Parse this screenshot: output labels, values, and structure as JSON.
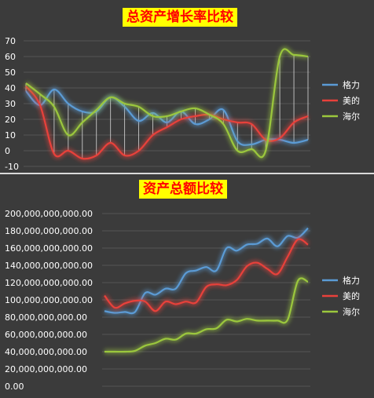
{
  "chart_data": [
    {
      "type": "line",
      "title": "总资产增长率比较",
      "ylim": [
        -10,
        70
      ],
      "yticks": [
        "70",
        "60",
        "50",
        "40",
        "30",
        "20",
        "10",
        "0",
        "-10"
      ],
      "grid": true,
      "legend_position": "right",
      "high_low_lines": true,
      "series": [
        {
          "name": "格力",
          "color": "#5b9bd5",
          "values": [
            38,
            29,
            39,
            30,
            25,
            25,
            34,
            28,
            19,
            24,
            18,
            25,
            17,
            20,
            26,
            6,
            4,
            7,
            7,
            5,
            7
          ]
        },
        {
          "name": "美的",
          "color": "#e8413b",
          "values": [
            41,
            29,
            -2,
            0,
            -5,
            -3,
            5,
            -3,
            0,
            10,
            15,
            20,
            22,
            23,
            20,
            18,
            17,
            7,
            8,
            18,
            22
          ]
        },
        {
          "name": "海尔",
          "color": "#9bc73d",
          "values": [
            43,
            36,
            28,
            10,
            18,
            26,
            34,
            30,
            28,
            22,
            22,
            25,
            27,
            23,
            17,
            0,
            1,
            0,
            60,
            61,
            60
          ]
        }
      ]
    },
    {
      "type": "line",
      "title": "资产总额比较",
      "ylim": [
        0,
        200000000000
      ],
      "yticks": [
        "200,000,000,000.00",
        "180,000,000,000.00",
        "160,000,000,000.00",
        "140,000,000,000.00",
        "120,000,000,000.00",
        "100,000,000,000.00",
        "80,000,000,000.00",
        "60,000,000,000.00",
        "40,000,000,000.00",
        "20,000,000,000.00",
        "0.00"
      ],
      "grid": true,
      "legend_position": "right",
      "series": [
        {
          "name": "格力",
          "color": "#5b9bd5",
          "values": [
            87000000000,
            85000000000,
            86000000000,
            86000000000,
            108000000000,
            106000000000,
            113000000000,
            113000000000,
            131000000000,
            134000000000,
            138000000000,
            134000000000,
            160000000000,
            157000000000,
            164000000000,
            165000000000,
            171000000000,
            162000000000,
            174000000000,
            172000000000,
            183000000000
          ]
        },
        {
          "name": "美的",
          "color": "#e8413b",
          "values": [
            105000000000,
            91000000000,
            96000000000,
            99000000000,
            98000000000,
            87000000000,
            98000000000,
            95000000000,
            98000000000,
            97000000000,
            115000000000,
            118000000000,
            117000000000,
            123000000000,
            139000000000,
            143000000000,
            136000000000,
            130000000000,
            150000000000,
            170000000000,
            164000000000
          ]
        },
        {
          "name": "海尔",
          "color": "#9bc73d",
          "values": [
            40000000000,
            40000000000,
            40000000000,
            41000000000,
            47000000000,
            50000000000,
            55000000000,
            54000000000,
            61000000000,
            61000000000,
            66000000000,
            67000000000,
            77000000000,
            75000000000,
            78000000000,
            76000000000,
            76000000000,
            76000000000,
            77000000000,
            122000000000,
            121000000000
          ]
        }
      ]
    }
  ]
}
